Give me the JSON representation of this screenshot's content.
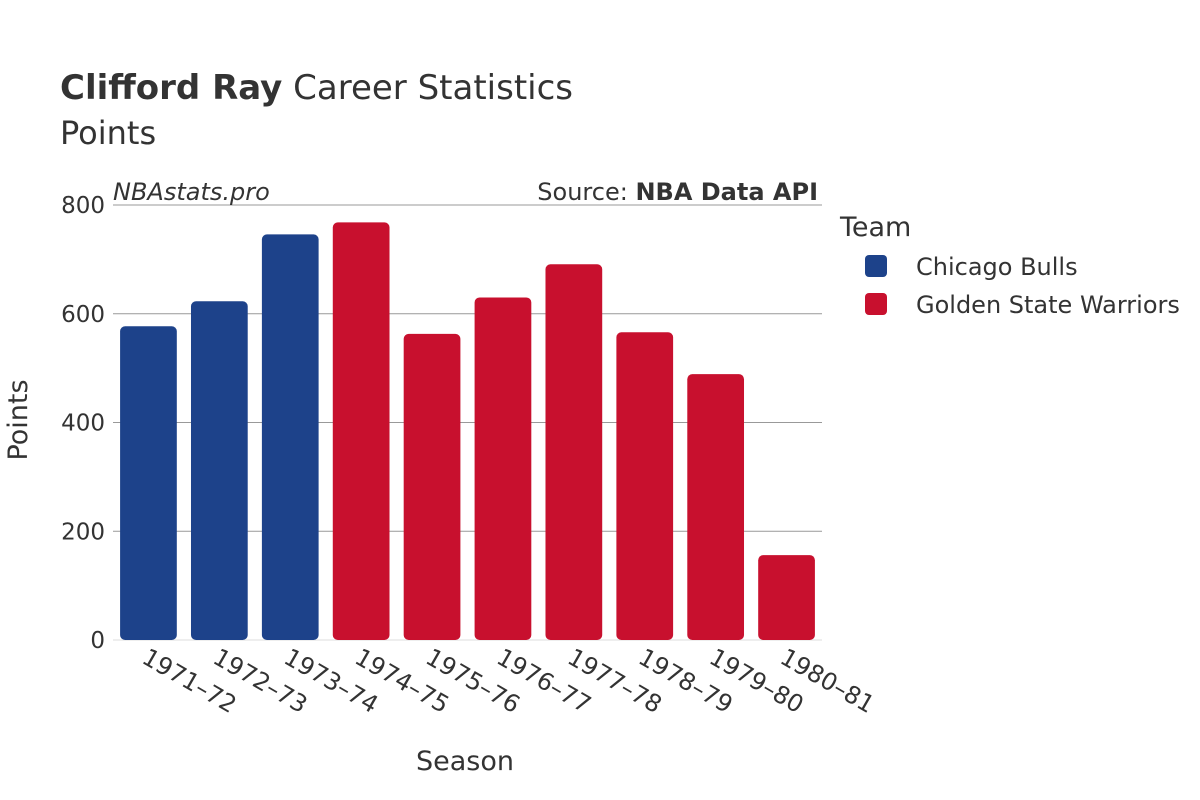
{
  "header": {
    "player_name": "Clifford Ray",
    "title_rest": " Career Statistics",
    "subtitle": "Points"
  },
  "watermark": "NBAstats.pro",
  "source": {
    "prefix": "Source: ",
    "name": "NBA Data API"
  },
  "legend": {
    "title": "Team",
    "items": [
      {
        "label": "Chicago Bulls",
        "color": "#1d428a"
      },
      {
        "label": "Golden State Warriors",
        "color": "#c8102e"
      }
    ]
  },
  "chart_data": {
    "type": "bar",
    "xlabel": "Season",
    "ylabel": "Points",
    "ylim": [
      0,
      800
    ],
    "yticks": [
      0,
      200,
      400,
      600,
      800
    ],
    "grid": true,
    "legend_position": "right",
    "categories": [
      "1971–72",
      "1972–73",
      "1973–74",
      "1974–75",
      "1975–76",
      "1976–77",
      "1977–78",
      "1978–79",
      "1979–80",
      "1980–81"
    ],
    "values": [
      577,
      623,
      746,
      768,
      563,
      630,
      691,
      566,
      489,
      156
    ],
    "teams": [
      "Chicago Bulls",
      "Chicago Bulls",
      "Chicago Bulls",
      "Golden State Warriors",
      "Golden State Warriors",
      "Golden State Warriors",
      "Golden State Warriors",
      "Golden State Warriors",
      "Golden State Warriors",
      "Golden State Warriors"
    ]
  }
}
